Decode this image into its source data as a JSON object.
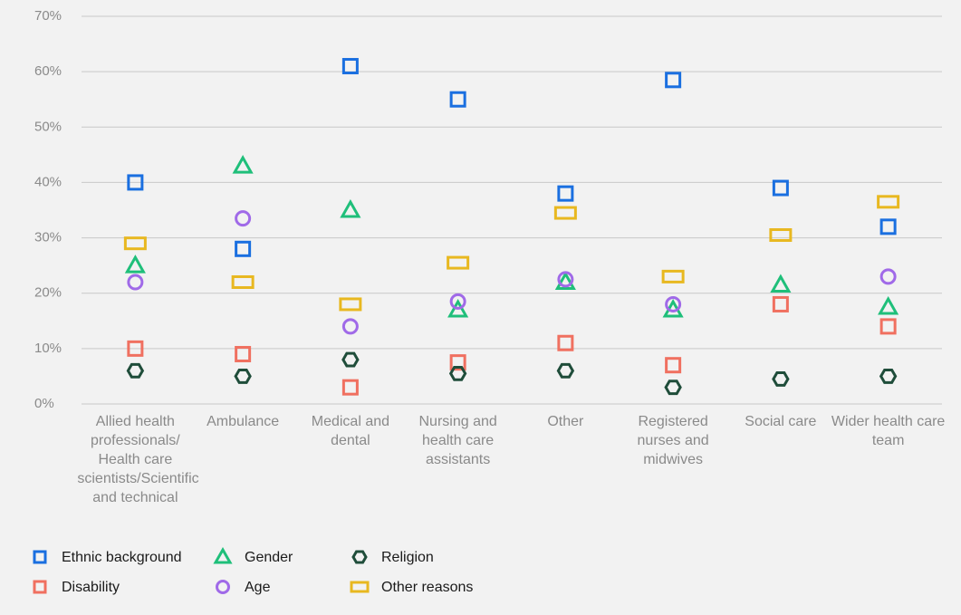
{
  "chart_data": {
    "type": "dot",
    "categories": [
      "Allied health professionals/ Health care scientists/Scientific and technical",
      "Ambulance",
      "Medical and dental",
      "Nursing and health care assistants",
      "Other",
      "Registered nurses and midwives",
      "Social care",
      "Wider health care team"
    ],
    "series": [
      {
        "name": "Ethnic background",
        "color": "#1a6fe0",
        "marker": "square",
        "values": [
          40,
          28,
          61,
          55,
          38,
          58.5,
          39,
          32
        ]
      },
      {
        "name": "Disability",
        "color": "#f07060",
        "marker": "square",
        "values": [
          10,
          9,
          3,
          7.5,
          11,
          7,
          18,
          14
        ]
      },
      {
        "name": "Gender",
        "color": "#1fbf7a",
        "marker": "triangle",
        "values": [
          25,
          43,
          35,
          17,
          22,
          17,
          21.5,
          17.5
        ]
      },
      {
        "name": "Age",
        "color": "#a06ae8",
        "marker": "circle",
        "values": [
          22,
          33.5,
          14,
          18.5,
          22.5,
          18,
          null,
          23
        ]
      },
      {
        "name": "Religion",
        "color": "#1f4d3a",
        "marker": "hexagon",
        "values": [
          6,
          5,
          8,
          5.5,
          6,
          3,
          4.5,
          5
        ]
      },
      {
        "name": "Other reasons",
        "color": "#e8b820",
        "marker": "wide-rect",
        "values": [
          29,
          22,
          18,
          25.5,
          34.5,
          23,
          30.5,
          36.5
        ]
      }
    ],
    "ylim": [
      0,
      70
    ],
    "yticks": [
      {
        "value": 0,
        "label": "0%"
      },
      {
        "value": 10,
        "label": "10%"
      },
      {
        "value": 20,
        "label": "20%"
      },
      {
        "value": 30,
        "label": "30%"
      },
      {
        "value": 40,
        "label": "40%"
      },
      {
        "value": 50,
        "label": "50%"
      },
      {
        "value": 60,
        "label": "60%"
      },
      {
        "value": 70,
        "label": "70%"
      }
    ],
    "grid": true
  }
}
